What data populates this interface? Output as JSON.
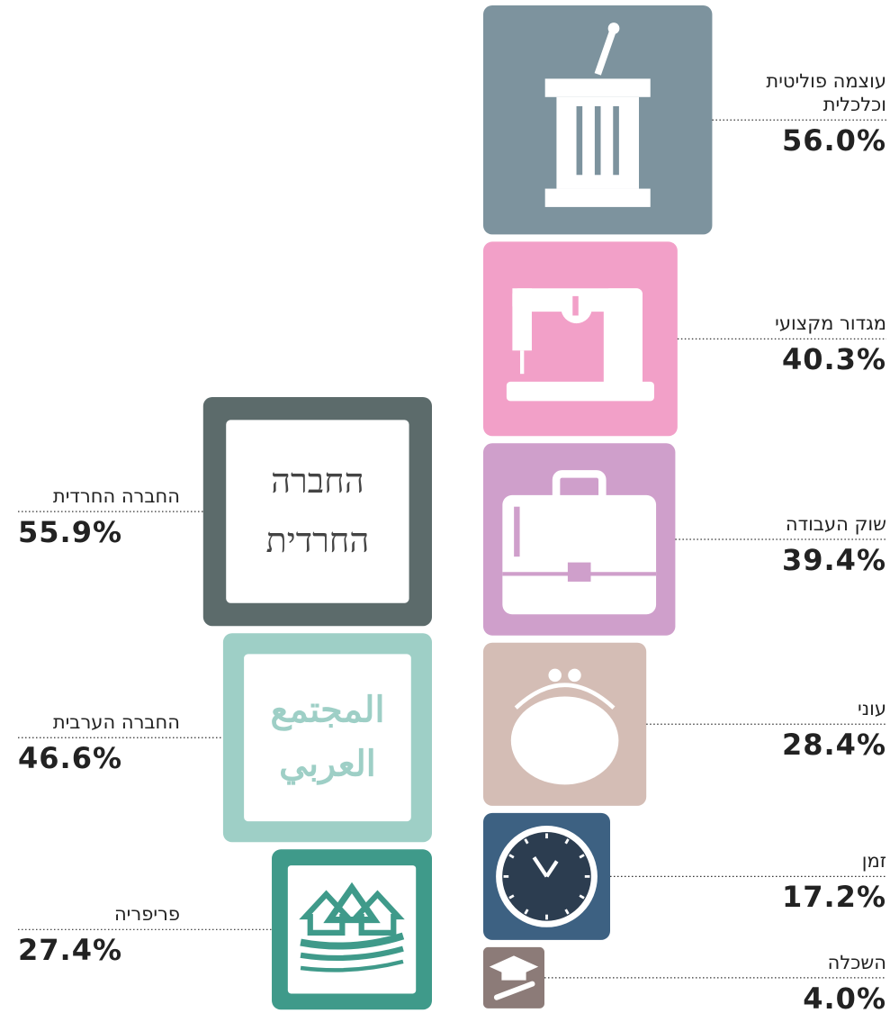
{
  "chart_data": [
    {
      "type": "square",
      "categories": [
        "עוצמה פוליטית וכלכלית",
        "מגדור מקצועי",
        "שוק העבודה",
        "עוני",
        "זמן",
        "השכלה"
      ],
      "values": [
        56.0,
        40.3,
        39.4,
        28.4,
        17.2,
        4.0
      ],
      "value_labels": [
        "56.0%",
        "40.3%",
        "39.4%",
        "28.4%",
        "17.2%",
        "4.0%"
      ],
      "colors": [
        "#7d939e",
        "#f2a0c8",
        "#cf9fcb",
        "#d4bdb5",
        "#3d6182",
        "#8c7b78"
      ]
    },
    {
      "type": "square",
      "categories": [
        "החברה החרדית",
        "החברה הערבית",
        "פריפריה"
      ],
      "values": [
        55.9,
        46.6,
        27.4
      ],
      "value_labels": [
        "55.9%",
        "46.6%",
        "27.4%"
      ],
      "colors": [
        "#5c6b6b",
        "#9ecfc6",
        "#3f9a8a"
      ],
      "icon_texts": [
        [
          "החברה",
          "החרדית"
        ],
        [
          "المجتمع",
          "العربي"
        ]
      ]
    }
  ]
}
